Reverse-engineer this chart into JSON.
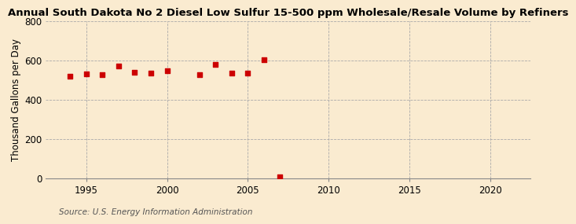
{
  "title": "Annual South Dakota No 2 Diesel Low Sulfur 15-500 ppm Wholesale/Resale Volume by Refiners",
  "ylabel": "Thousand Gallons per Day",
  "source": "Source: U.S. Energy Information Administration",
  "background_color": "#faebd0",
  "data_color": "#cc0000",
  "years": [
    1994,
    1995,
    1996,
    1997,
    1998,
    1999,
    2000,
    2002,
    2003,
    2004,
    2005,
    2006,
    2007
  ],
  "values": [
    518,
    530,
    527,
    572,
    538,
    533,
    545,
    527,
    580,
    533,
    535,
    602,
    8
  ],
  "xlim": [
    1992.5,
    2022.5
  ],
  "ylim": [
    0,
    800
  ],
  "yticks": [
    0,
    200,
    400,
    600,
    800
  ],
  "xticks": [
    1995,
    2000,
    2005,
    2010,
    2015,
    2020
  ],
  "title_fontsize": 9.5,
  "ylabel_fontsize": 8.5,
  "tick_fontsize": 8.5,
  "source_fontsize": 7.5,
  "marker_size": 20
}
